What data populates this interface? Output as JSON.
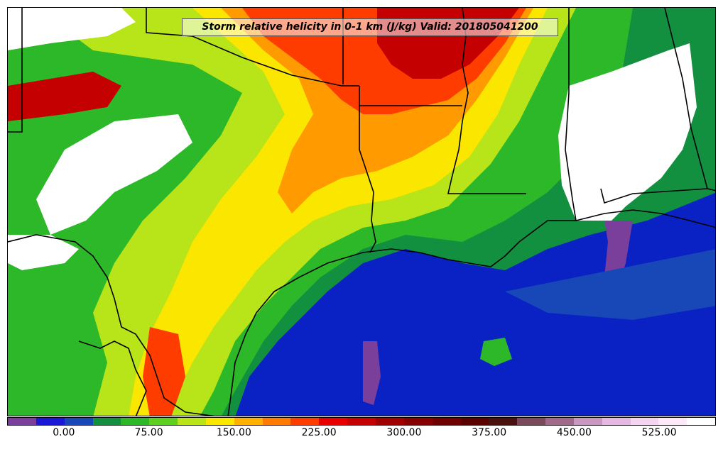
{
  "title": "Storm relative helicity in 0-1 km (J/kg) Valid: 201805041200",
  "colorbar": {
    "colors": [
      "#7a3f9a",
      "#1a17d6",
      "#1848b8",
      "#129040",
      "#2db82a",
      "#5ecf1e",
      "#b8e51a",
      "#fbe600",
      "#ffb000",
      "#ff7a00",
      "#ff3c00",
      "#e80000",
      "#c40000",
      "#a00000",
      "#860000",
      "#6e0000",
      "#5a0000",
      "#4a1010",
      "#7a4a5a",
      "#a06a8a",
      "#c898c0",
      "#e4b8e0",
      "#f4d4f0",
      "#fbe8f8",
      "#ffffff"
    ],
    "ticks": [
      "0.00",
      "75.00",
      "150.00",
      "225.00",
      "300.00",
      "375.00",
      "450.00",
      "525.00"
    ],
    "tick_values": [
      0,
      75,
      150,
      225,
      300,
      375,
      450,
      525
    ],
    "min": -50,
    "max": 575
  }
}
